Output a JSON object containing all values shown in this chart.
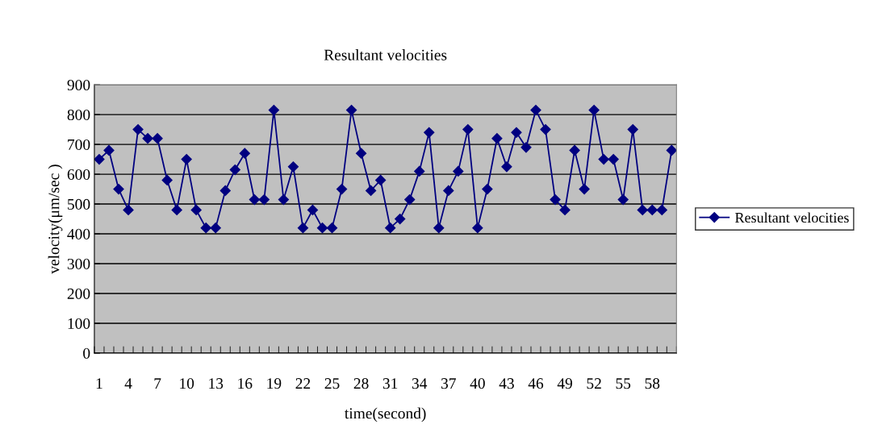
{
  "chart_data": {
    "type": "line",
    "title": "Resultant velocities",
    "xlabel": "time(second)",
    "ylabel": "velocity(μm/sec )",
    "categories": [
      "1",
      null,
      null,
      "4",
      null,
      null,
      "7",
      null,
      null,
      "10",
      null,
      null,
      "13",
      null,
      null,
      "16",
      null,
      null,
      "19",
      null,
      null,
      "22",
      null,
      null,
      "25",
      null,
      null,
      "28",
      null,
      null,
      "31",
      null,
      null,
      "34",
      null,
      null,
      "37",
      null,
      null,
      "40",
      null,
      null,
      "43",
      null,
      null,
      "46",
      null,
      null,
      "49",
      null,
      null,
      "52",
      null,
      null,
      "55",
      null,
      null,
      "58",
      null,
      null
    ],
    "series": [
      {
        "name": "Resultant velocities",
        "color": "#000080",
        "values": [
          650,
          680,
          550,
          480,
          750,
          720,
          720,
          580,
          480,
          650,
          480,
          420,
          420,
          545,
          615,
          670,
          515,
          515,
          815,
          515,
          625,
          420,
          480,
          420,
          420,
          550,
          815,
          670,
          545,
          580,
          420,
          450,
          515,
          610,
          740,
          420,
          545,
          610,
          750,
          420,
          550,
          720,
          625,
          740,
          690,
          815,
          750,
          515,
          480,
          680,
          550,
          815,
          650,
          650,
          515,
          750,
          480,
          480,
          480,
          680
        ]
      }
    ],
    "ylim": [
      0,
      900
    ],
    "yticks": [
      0,
      100,
      200,
      300,
      400,
      500,
      600,
      700,
      800,
      900
    ],
    "grid": "y",
    "legend": "right",
    "marker": "diamond",
    "line_style": "solid"
  }
}
